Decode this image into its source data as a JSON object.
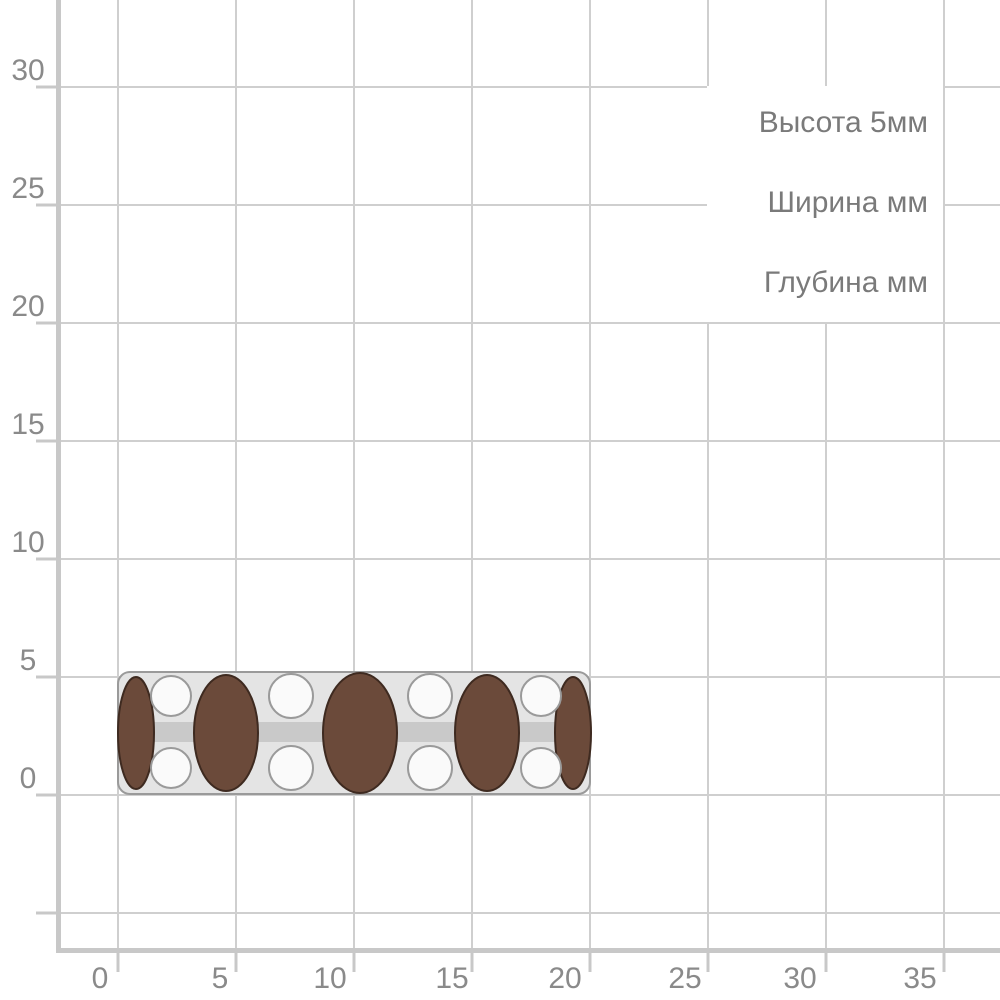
{
  "ruler": {
    "y_labels": [
      30,
      25,
      20,
      15,
      10,
      5,
      0
    ],
    "x_labels": [
      0,
      5,
      10,
      15,
      20,
      25,
      30,
      35
    ]
  },
  "dimensions": [
    "Высота  5мм",
    "Ширина мм",
    "Глубина мм"
  ]
}
